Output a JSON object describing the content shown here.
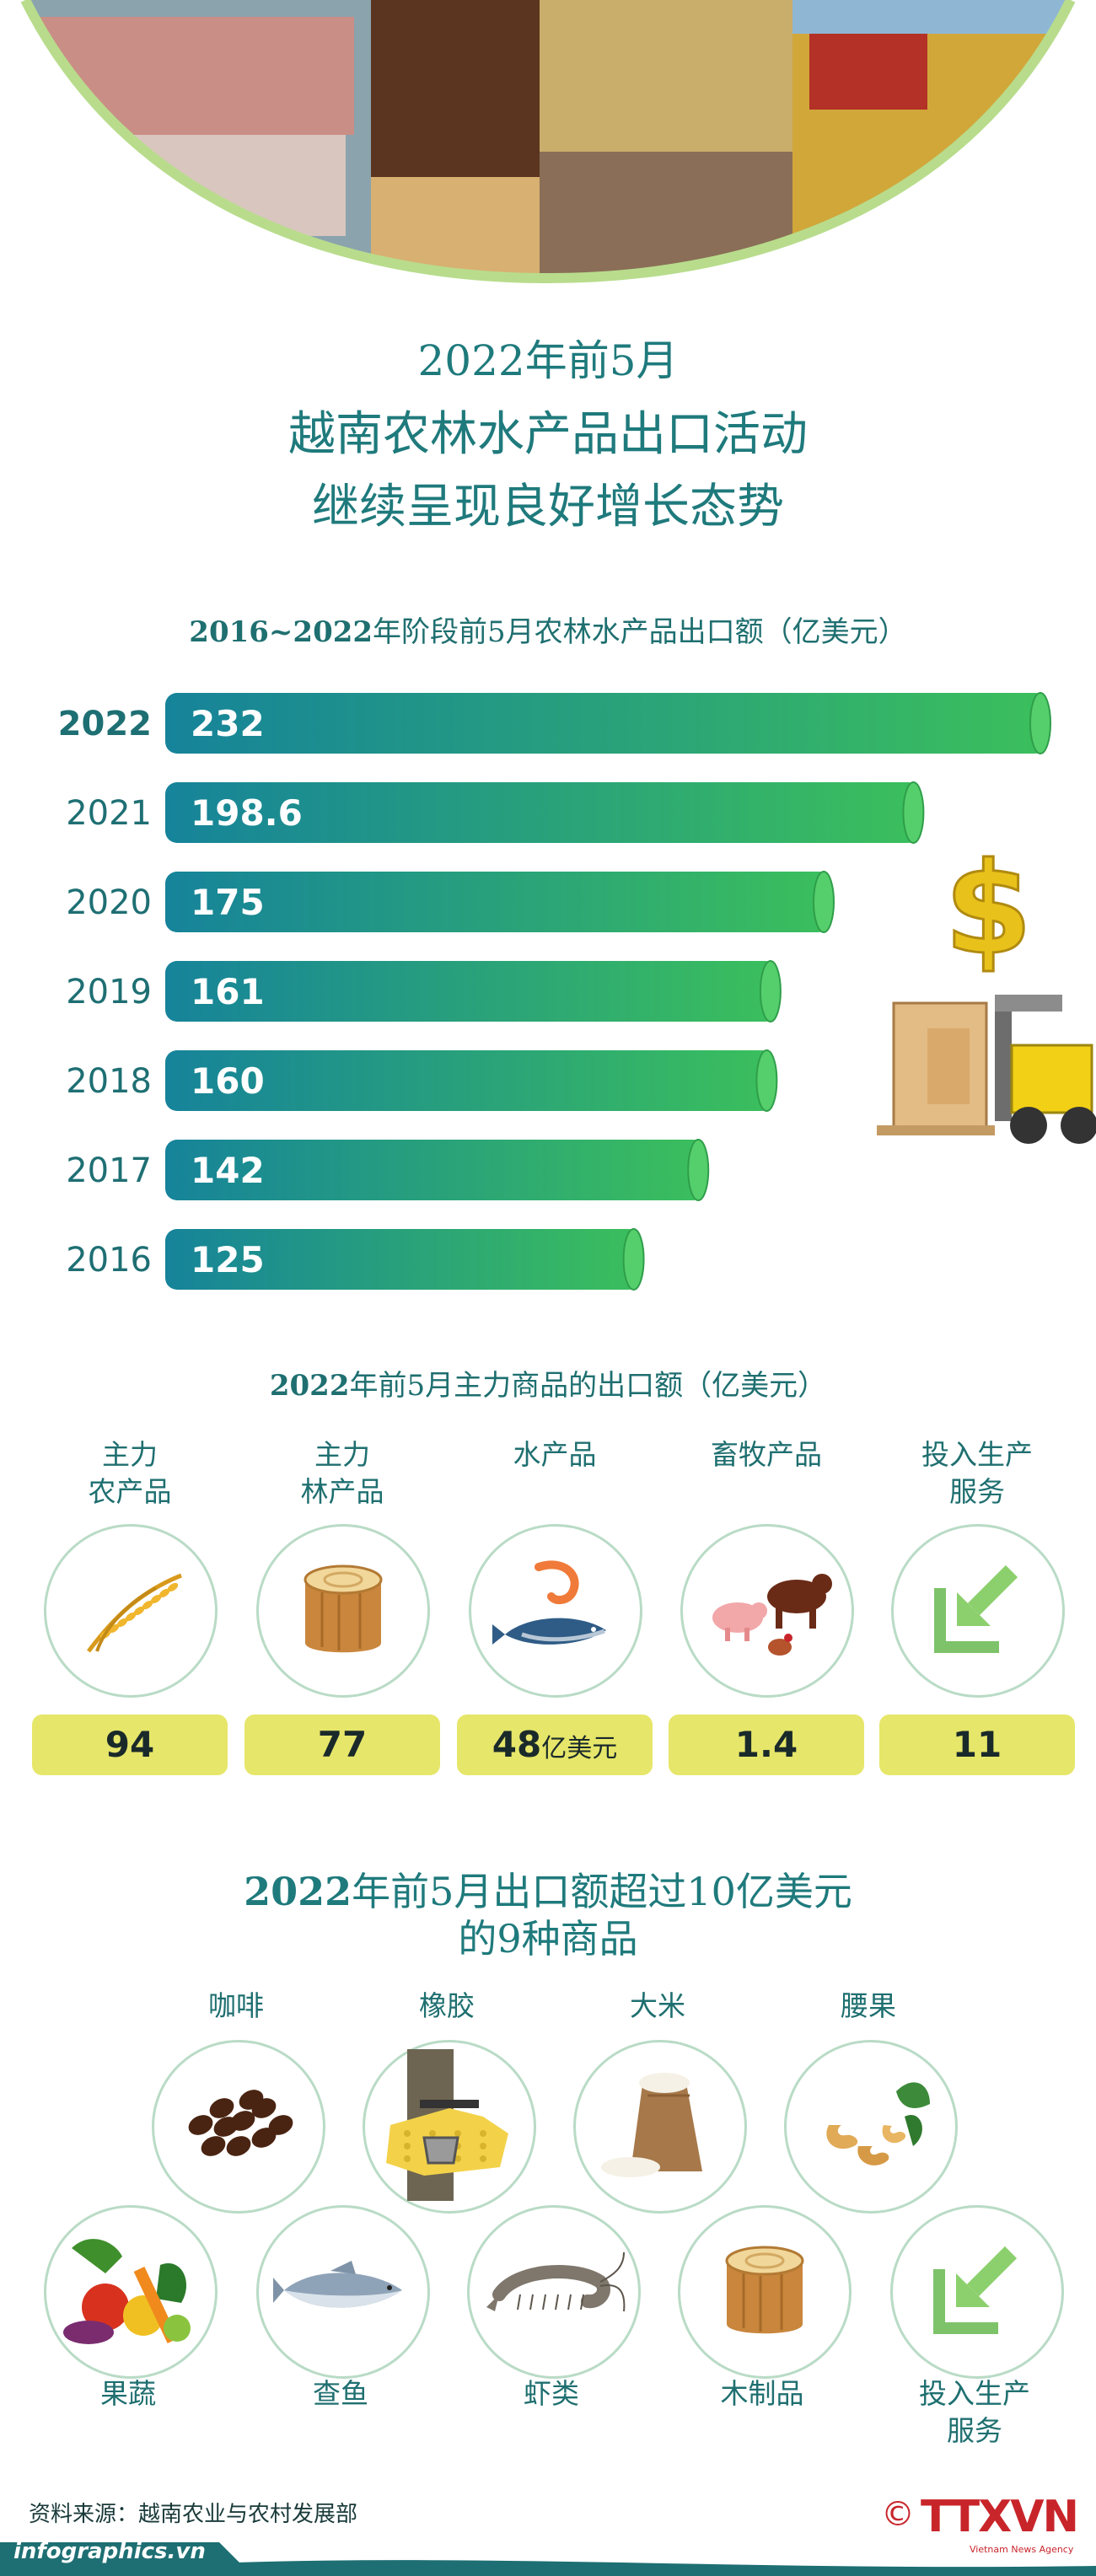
{
  "title": {
    "line1": "2022年前5月",
    "line2": "越南农林水产品出口活动",
    "line3": "继续呈现良好增长态势"
  },
  "section1": {
    "heading_bold": "2016~2022",
    "heading_rest": "年阶段前5月农林水产品出口额（亿美元）"
  },
  "chart_data": {
    "type": "bar",
    "orientation": "horizontal",
    "title": "2016~2022年阶段前5月农林水产品出口额（亿美元）",
    "categories": [
      "2022",
      "2021",
      "2020",
      "2019",
      "2018",
      "2017",
      "2016"
    ],
    "value_labels": [
      "232",
      "198.6",
      "175",
      "161",
      "160",
      "142",
      "125"
    ],
    "values": [
      232,
      198.6,
      175,
      161,
      160,
      142,
      125
    ],
    "colors": {
      "start": "#16839a",
      "end": "#3bbf5c",
      "cap": "#55cf6c"
    }
  },
  "section2": {
    "heading_bold": "2022",
    "heading_rest": "年前5月主力商品的出口额（亿美元）",
    "items": [
      {
        "label1": "主力",
        "label2": "农产品",
        "value": "94",
        "unit": "",
        "icon": "rice-icon"
      },
      {
        "label1": "主力",
        "label2": "林产品",
        "value": "77",
        "unit": "",
        "icon": "wood-icon"
      },
      {
        "label1": "水产品",
        "label2": "",
        "value": "48",
        "unit": "亿美元",
        "icon": "seafood-icon"
      },
      {
        "label1": "畜牧产品",
        "label2": "",
        "value": "1.4",
        "unit": "",
        "icon": "livestock-icon"
      },
      {
        "label1": "投入生产",
        "label2": "服务",
        "value": "11",
        "unit": "",
        "icon": "input-arrow-icon"
      }
    ]
  },
  "section3": {
    "heading_line1_bold": "2022",
    "heading_line1_rest": "年前5月出口额超过10亿美元",
    "heading_line2": "的9种商品",
    "row1": [
      {
        "label": "咖啡",
        "icon": "coffee-icon"
      },
      {
        "label": "橡胶",
        "icon": "rubber-icon"
      },
      {
        "label": "大米",
        "icon": "rice-sack-icon"
      },
      {
        "label": "腰果",
        "icon": "cashew-icon"
      }
    ],
    "row2": [
      {
        "label": "果蔬",
        "label2": "",
        "icon": "vegetables-icon"
      },
      {
        "label": "查鱼",
        "label2": "",
        "icon": "pangasius-icon"
      },
      {
        "label": "虾类",
        "label2": "",
        "icon": "shrimp-icon"
      },
      {
        "label": "木制品",
        "label2": "",
        "icon": "wood-product-icon"
      },
      {
        "label": "投入生产",
        "label2": "服务",
        "icon": "input-arrow-icon"
      }
    ]
  },
  "footer": {
    "source": "资料来源：越南农业与农村发展部",
    "site": "infographics.vn",
    "copyright": "©",
    "logo": "TTXVN",
    "logo_sub": "Vietnam News Agency"
  },
  "colors": {
    "teal": "#1f7a7c",
    "yellow": "#e6e66a",
    "green": "#3bbf5c"
  }
}
